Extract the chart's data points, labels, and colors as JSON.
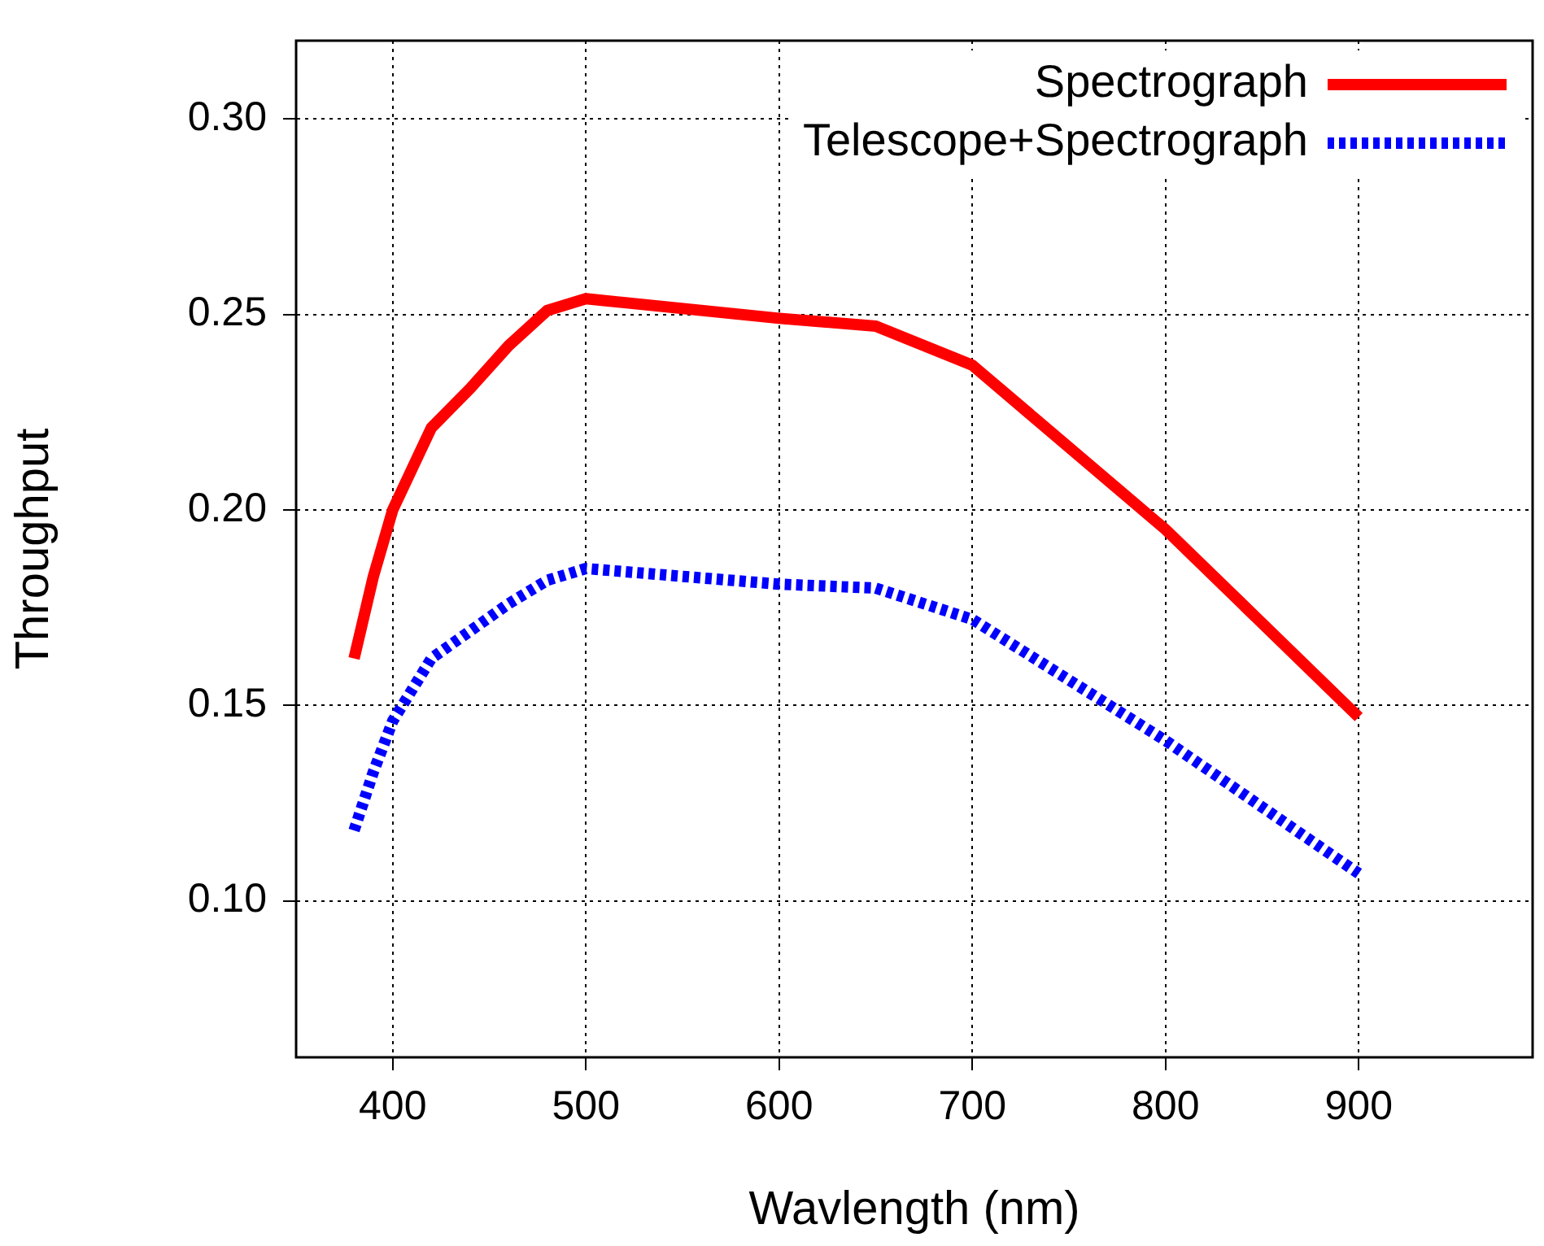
{
  "chart_data": {
    "type": "line",
    "xlabel": "Wavlength (nm)",
    "ylabel": "Throughput",
    "xlim": [
      350,
      990
    ],
    "xticks": [
      400,
      500,
      600,
      700,
      800,
      900
    ],
    "ylim": [
      0.06,
      0.32
    ],
    "yticks": [
      {
        "value": 0.1,
        "label": "0.10"
      },
      0.15,
      {
        "value": 0.2,
        "label": "0.20"
      },
      0.25,
      {
        "value": 0.3,
        "label": "0.30"
      }
    ],
    "grid": true,
    "legend": "top right",
    "marker": "none",
    "series": [
      {
        "name": "Spectrograph",
        "color": "#ff0000",
        "line_style": "solid",
        "x": [
          380,
          390,
          400,
          420,
          440,
          460,
          480,
          500,
          600,
          650,
          700,
          800,
          900
        ],
        "values": [
          0.162,
          0.183,
          0.2,
          0.221,
          0.231,
          0.242,
          0.251,
          0.254,
          0.249,
          0.247,
          0.237,
          0.195,
          0.147
        ]
      },
      {
        "name": "Telescope+Spectrograph",
        "color": "#0000ff",
        "line_style": "dotted",
        "x": [
          380,
          390,
          400,
          420,
          440,
          460,
          480,
          500,
          600,
          650,
          700,
          800,
          900
        ],
        "values": [
          0.118,
          0.133,
          0.146,
          0.162,
          0.169,
          0.176,
          0.182,
          0.185,
          0.181,
          0.18,
          0.172,
          0.141,
          0.107
        ]
      }
    ]
  }
}
